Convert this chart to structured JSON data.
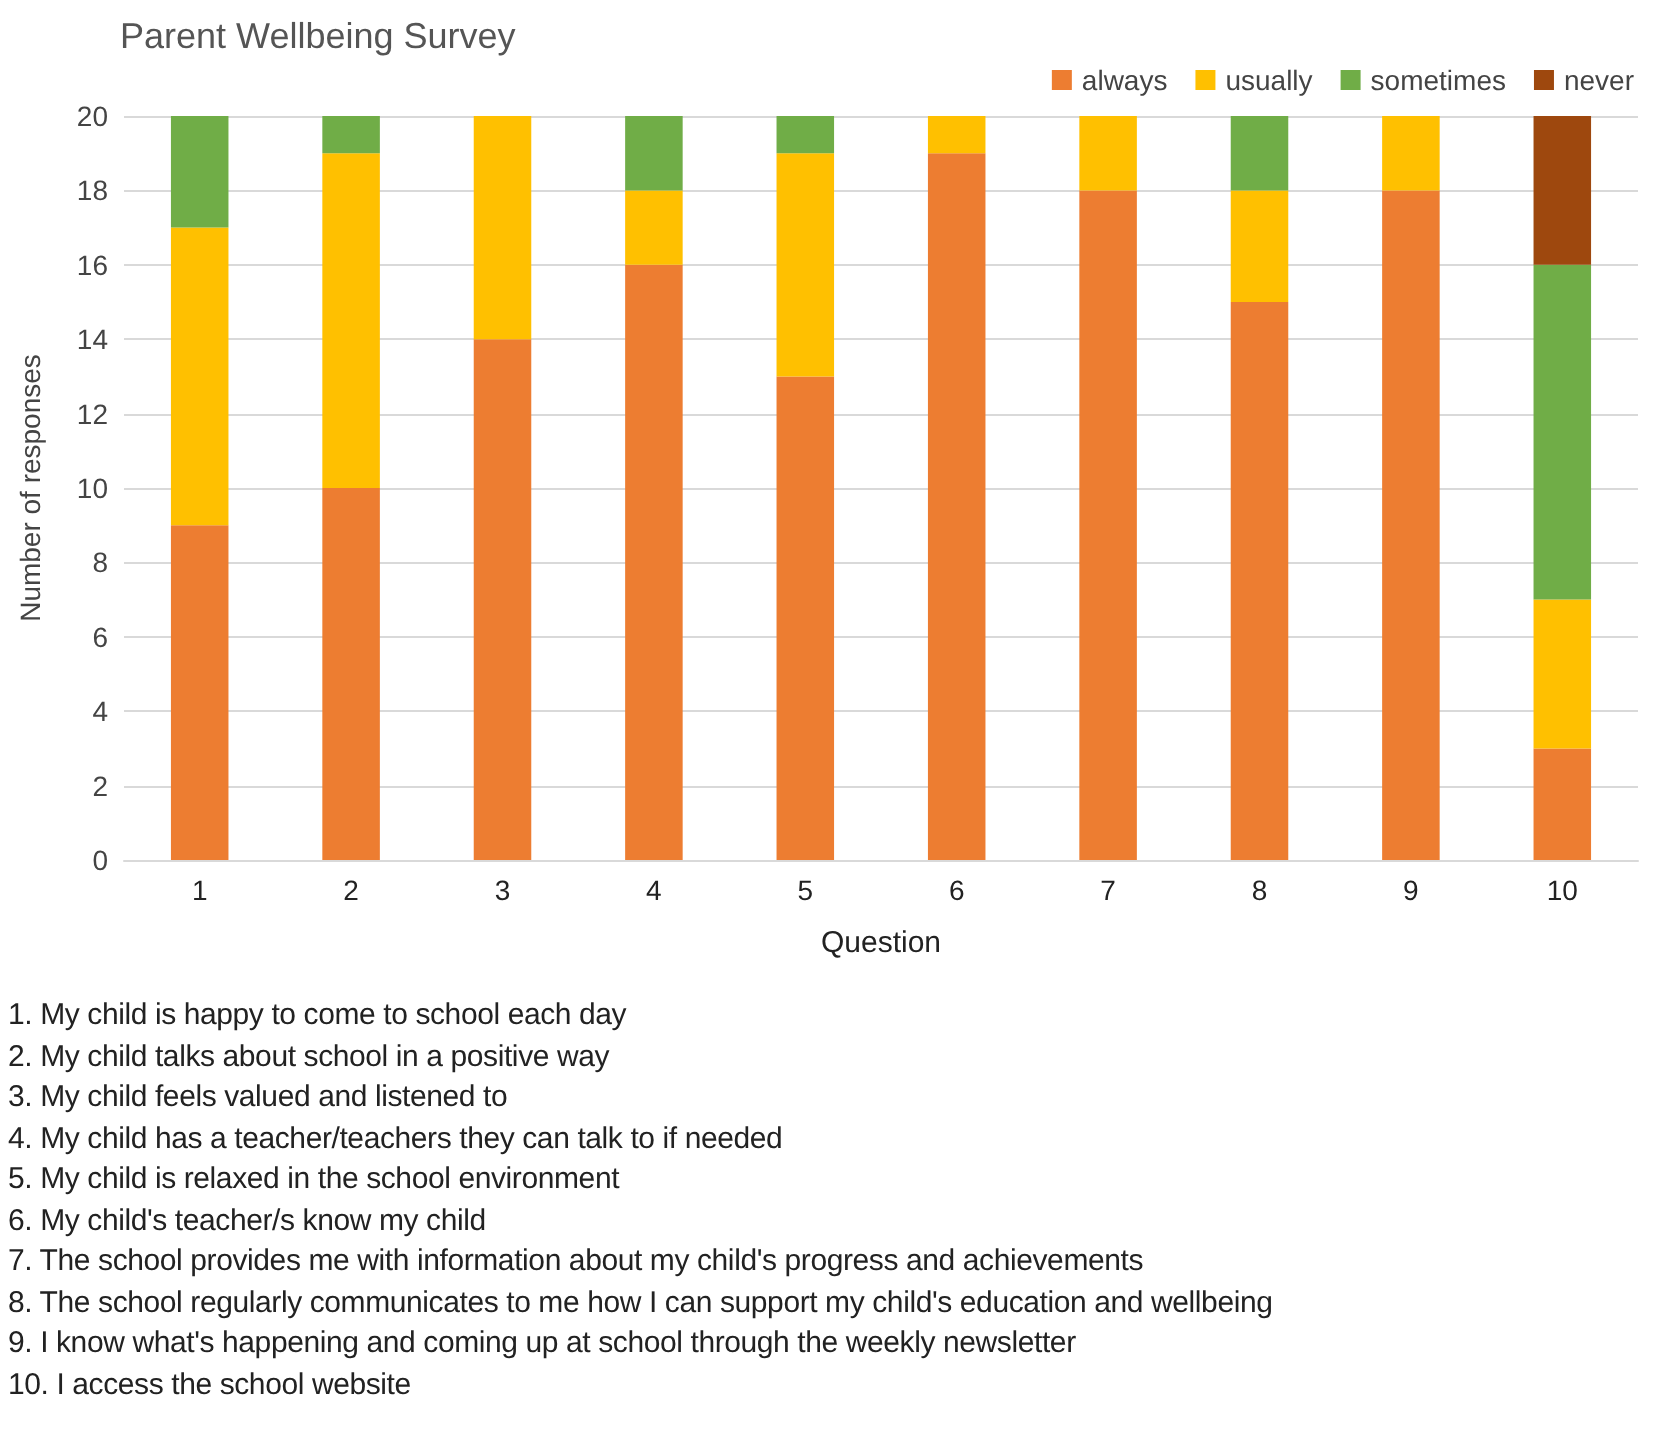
{
  "chart_data": {
    "type": "bar",
    "title": "Parent Wellbeing Survey",
    "xlabel": "Question",
    "ylabel": "Number of responses",
    "categories": [
      "1",
      "2",
      "3",
      "4",
      "5",
      "6",
      "7",
      "8",
      "9",
      "10"
    ],
    "series": [
      {
        "name": "always",
        "color": "#ed7d31",
        "values": [
          9,
          10,
          14,
          16,
          13,
          19,
          18,
          15,
          18,
          3
        ]
      },
      {
        "name": "usually",
        "color": "#ffc000",
        "values": [
          8,
          9,
          6,
          2,
          6,
          1,
          2,
          3,
          2,
          4
        ]
      },
      {
        "name": "sometimes",
        "color": "#70ad47",
        "values": [
          3,
          1,
          0,
          2,
          1,
          0,
          0,
          2,
          0,
          9
        ]
      },
      {
        "name": "never",
        "color": "#9e480e",
        "values": [
          0,
          0,
          0,
          0,
          0,
          0,
          0,
          0,
          0,
          4
        ]
      }
    ],
    "stacked": true,
    "ylim": [
      0,
      20
    ],
    "yticks": [
      0,
      2,
      4,
      6,
      8,
      10,
      12,
      14,
      16,
      18,
      20
    ],
    "grid": "y",
    "legend": "top right",
    "annotations": [
      "1. My child is happy to come to school each day",
      "2. My child talks about school in a positive way",
      "3. My child feels valued and listened to",
      "4. My child has a teacher/teachers they can talk to if needed",
      "5. My child is relaxed in the school environment",
      "6. My child's teacher/s know my child",
      "7. The school provides me with information about my child's progress and achievements",
      "8. The school regularly communicates to me how I can support my child's education and wellbeing",
      "9. I know what's happening and coming up at school through the weekly newsletter",
      "10. I access the school website"
    ]
  }
}
